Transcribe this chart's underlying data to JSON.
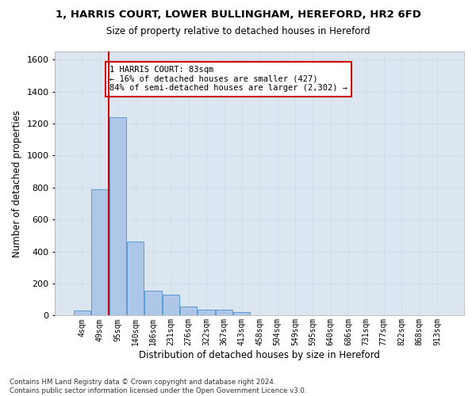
{
  "title1": "1, HARRIS COURT, LOWER BULLINGHAM, HEREFORD, HR2 6FD",
  "title2": "Size of property relative to detached houses in Hereford",
  "xlabel": "Distribution of detached houses by size in Hereford",
  "ylabel": "Number of detached properties",
  "bin_labels": [
    "4sqm",
    "49sqm",
    "95sqm",
    "140sqm",
    "186sqm",
    "231sqm",
    "276sqm",
    "322sqm",
    "367sqm",
    "413sqm",
    "458sqm",
    "504sqm",
    "549sqm",
    "595sqm",
    "640sqm",
    "686sqm",
    "731sqm",
    "777sqm",
    "822sqm",
    "868sqm",
    "913sqm"
  ],
  "bar_values": [
    30,
    790,
    1240,
    460,
    155,
    130,
    55,
    35,
    35,
    20,
    0,
    0,
    0,
    0,
    0,
    0,
    0,
    0,
    0,
    0,
    0
  ],
  "bar_color": "#aec6e8",
  "bar_edge_color": "#5b9bd5",
  "grid_color": "#d0dce8",
  "background_color": "#dce6f1",
  "vline_x": 1.5,
  "vline_color": "#cc0000",
  "annotation_text": "1 HARRIS COURT: 83sqm\n← 16% of detached houses are smaller (427)\n84% of semi-detached houses are larger (2,302) →",
  "annotation_box_color": "#ffffff",
  "annotation_box_edge": "#cc0000",
  "ylim": [
    0,
    1650
  ],
  "yticks": [
    0,
    200,
    400,
    600,
    800,
    1000,
    1200,
    1400,
    1600
  ],
  "footer": "Contains HM Land Registry data © Crown copyright and database right 2024.\nContains public sector information licensed under the Open Government Licence v3.0."
}
